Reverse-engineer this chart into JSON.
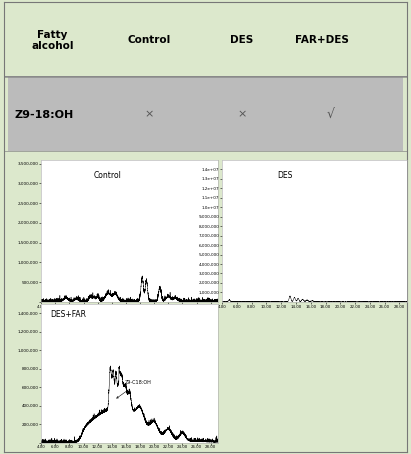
{
  "title_row": [
    "Fatty\nalcohol",
    "Control",
    "DES",
    "FAR+DES"
  ],
  "row_label": "Z9-18:OH",
  "row_symbols": [
    "×",
    "×",
    "√"
  ],
  "bg_color": "#dce8cc",
  "table_row_color": "#bbbbbb",
  "plot_bg": "#ffffff",
  "control_label": "Control",
  "des_label": "DES",
  "desfar_label": "DES+FAR",
  "peak_label": "Z9-C18:OH",
  "fig_width": 4.11,
  "fig_height": 4.54
}
